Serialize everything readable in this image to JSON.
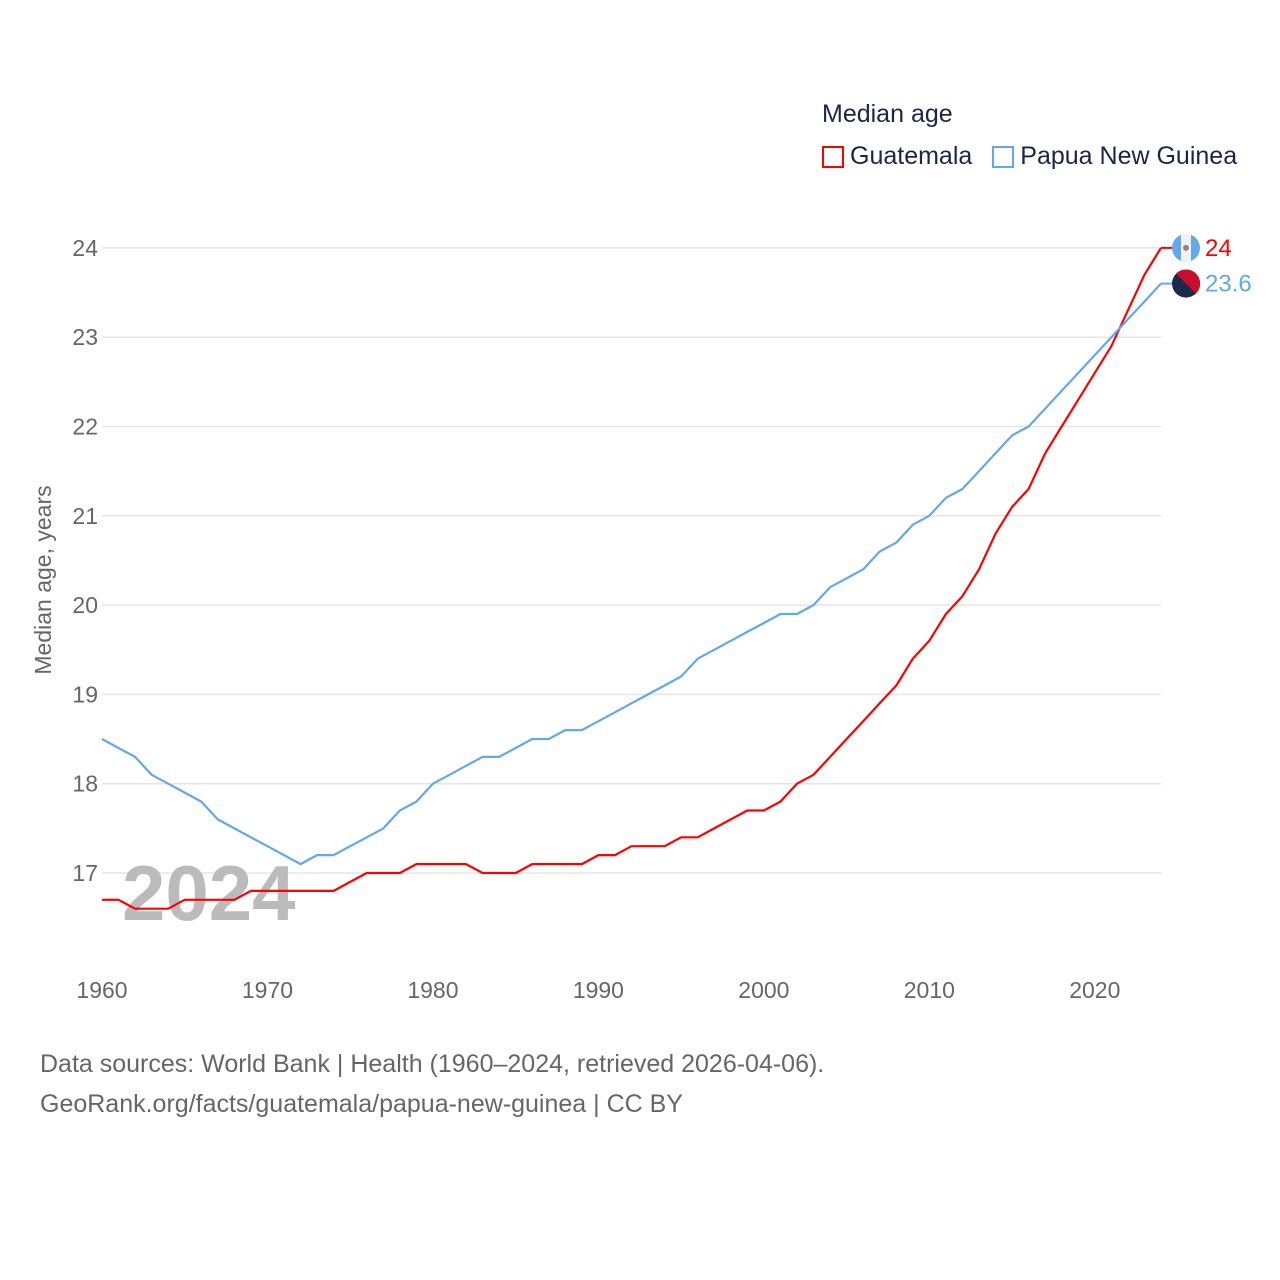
{
  "chart_data": {
    "type": "line",
    "title": "Median age",
    "xlabel": "",
    "ylabel": "Median age, years",
    "xlim": [
      1960,
      2024
    ],
    "ylim": [
      16.3,
      24.2
    ],
    "x_ticks": [
      1960,
      1970,
      1980,
      1990,
      2000,
      2010,
      2020
    ],
    "y_ticks": [
      17,
      18,
      19,
      20,
      21,
      22,
      23,
      24
    ],
    "grid": true,
    "legend_position": "top-right",
    "year_watermark": "2024",
    "x_start": 1960,
    "series": [
      {
        "name": "Guatemala",
        "color": "#ff0000",
        "end_label": "24",
        "values": [
          16.7,
          16.7,
          16.6,
          16.6,
          16.6,
          16.7,
          16.7,
          16.7,
          16.7,
          16.8,
          16.8,
          16.8,
          16.8,
          16.8,
          16.8,
          16.9,
          17.0,
          17.0,
          17.0,
          17.1,
          17.1,
          17.1,
          17.1,
          17.0,
          17.0,
          17.0,
          17.1,
          17.1,
          17.1,
          17.1,
          17.2,
          17.2,
          17.3,
          17.3,
          17.3,
          17.4,
          17.4,
          17.5,
          17.6,
          17.7,
          17.7,
          17.8,
          18.0,
          18.1,
          18.3,
          18.5,
          18.7,
          18.9,
          19.1,
          19.4,
          19.6,
          19.9,
          20.1,
          20.4,
          20.8,
          21.1,
          21.3,
          21.7,
          22.0,
          22.3,
          22.6,
          22.9,
          23.3,
          23.7,
          24.0
        ]
      },
      {
        "name": "Papua New Guinea",
        "color": "#64a8ea",
        "end_label": "23.6",
        "values": [
          18.5,
          18.4,
          18.3,
          18.1,
          18.0,
          17.9,
          17.8,
          17.6,
          17.5,
          17.4,
          17.3,
          17.2,
          17.1,
          17.2,
          17.2,
          17.3,
          17.4,
          17.5,
          17.7,
          17.8,
          18.0,
          18.1,
          18.2,
          18.3,
          18.3,
          18.4,
          18.5,
          18.5,
          18.6,
          18.6,
          18.7,
          18.8,
          18.9,
          19.0,
          19.1,
          19.2,
          19.4,
          19.5,
          19.6,
          19.7,
          19.8,
          19.9,
          19.9,
          20.0,
          20.2,
          20.3,
          20.4,
          20.6,
          20.7,
          20.9,
          21.0,
          21.2,
          21.3,
          21.5,
          21.7,
          21.9,
          22.0,
          22.2,
          22.4,
          22.6,
          22.8,
          23.0,
          23.2,
          23.4,
          23.6
        ]
      }
    ]
  },
  "footer": {
    "line1": "Data sources: World Bank | Health (1960–2024, retrieved 2026-04-06).",
    "line2": "GeoRank.org/facts/guatemala/papua-new-guinea | CC BY"
  }
}
